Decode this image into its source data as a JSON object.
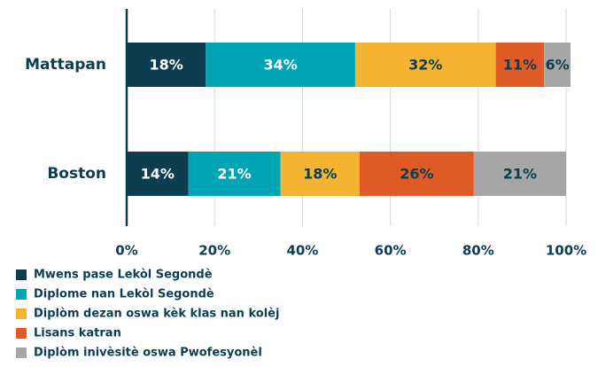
{
  "chart_data": {
    "type": "stacked-bar-horizontal",
    "categories": [
      "Mattapan",
      "Boston"
    ],
    "series": [
      {
        "name": "Mwens pase Lekòl Segondè",
        "color": "#0d3d50",
        "values": [
          18,
          14
        ],
        "value_labels": [
          "18%",
          "14%"
        ]
      },
      {
        "name": "Diplome nan Lekòl Segondè",
        "color": "#00a5b5",
        "values": [
          34,
          21
        ],
        "value_labels": [
          "34%",
          "21%"
        ]
      },
      {
        "name": "Diplòm dezan oswa kèk klas nan kolèj",
        "color": "#f4b331",
        "values": [
          32,
          18
        ],
        "value_labels": [
          "32%",
          "18%"
        ]
      },
      {
        "name": "Lisans katran",
        "color": "#e05a28",
        "values": [
          11,
          26
        ],
        "value_labels": [
          "11%",
          "26%"
        ]
      },
      {
        "name": "Diplòm inivèsitè oswa Pwofesyonèl",
        "color": "#a6a6a6",
        "values": [
          6,
          21
        ],
        "value_labels": [
          "6%",
          "21%"
        ]
      }
    ],
    "xlim": [
      0,
      100
    ],
    "xticks": [
      {
        "value": 0,
        "label": "0%"
      },
      {
        "value": 20,
        "label": "20%"
      },
      {
        "value": 40,
        "label": "40%"
      },
      {
        "value": 60,
        "label": "60%"
      },
      {
        "value": 80,
        "label": "80%"
      },
      {
        "value": 100,
        "label": "100%"
      }
    ],
    "grid": true
  }
}
